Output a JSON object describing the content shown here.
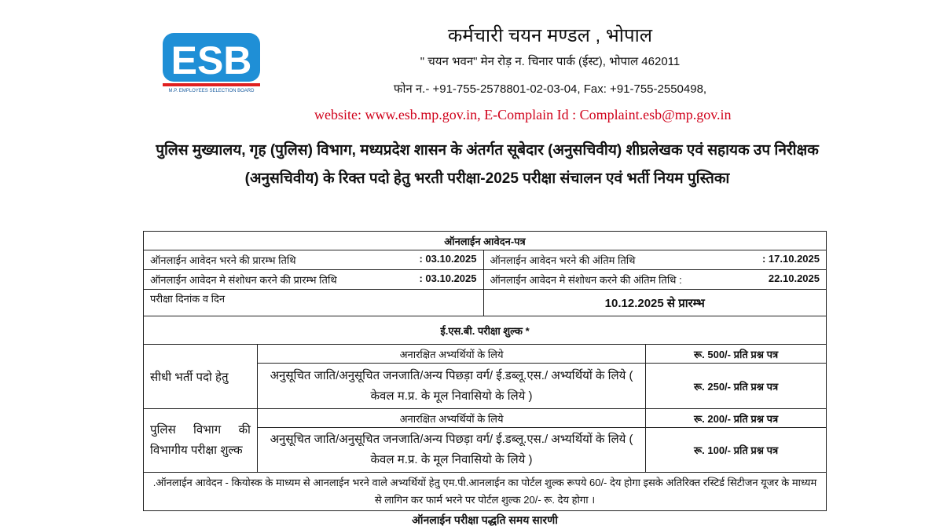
{
  "logo": {
    "text": "ESB",
    "subtext": "M.P. EMPLOYEES SELECTION BOARD",
    "colors": [
      "#1f8fd6",
      "#e02020"
    ]
  },
  "header": {
    "org": "कर्मचारी चयन मण्डल , भोपाल",
    "address": "\" चयन भवन\" मेन रोड़ न. चिनार पार्क (ईस्ट), भोपाल 462011",
    "phone": "फोन न.- +91-755-2578801-02-03-04, Fax: +91-755-2550498,",
    "web": "website: www.esb.mp.gov.in,  E-Complain Id : Complaint.esb@mp.gov.in"
  },
  "title": "पुलिस मुख्यालय, गृह (पुलिस) विभाग, मध्यप्रदेश शासन के अंतर्गत सूबेदार (अनुसचिवीय) शीघ्रलेखक एवं सहायक उप निरीक्षक (अनुसचिवीय) के रिक्त पदो हेतु भरती परीक्षा-2025 परीक्षा संचालन एवं भर्ती नियम पुस्तिका",
  "table": {
    "heading": "ऑनलाईन आवेदन-पत्र",
    "rows": [
      {
        "l_label": "ऑनलाईन आवेदन भरने की प्रारम्भ तिथि",
        "l_value": ": 03.10.2025",
        "r_label": "ऑनलाईन आवेदन भरने की अंतिम तिथि",
        "r_value": ":   17.10.2025"
      },
      {
        "l_label": "ऑनलाईन आवेदन मे संशोधन करने की प्रारम्भ तिथि",
        "l_value": ": 03.10.2025",
        "r_label": "ऑनलाईन आवेदन मे संशोधन करने की अंतिम तिथि :",
        "r_value": "22.10.2025"
      }
    ],
    "exam_label": "परीक्षा दिनांक व दिन",
    "exam_value": "10.12.2025 से प्रारम्भ",
    "fee_heading": "ई.एस.बी. परीक्षा शुल्क *",
    "groups": [
      {
        "label": "सीधी भर्ती पदो हेतु",
        "items": [
          {
            "cat": "अनारक्षित अभ्यर्थियों के लिये",
            "fee": "रू. 500/- प्रति प्रश्न पत्र"
          },
          {
            "cat": "अनुसूचित जाति/अनुसूचित जनजाति/अन्य पिछड़ा वर्ग/ ई.डब्लू.एस./ अभ्यर्थियों के लिये   ( केवल म.प्र. के मूल निवासियो के लिये )",
            "fee": "रू. 250/- प्रति प्रश्न पत्र"
          }
        ]
      },
      {
        "label": "पुलिस विभाग की विभागीय परीक्षा शुल्क",
        "items": [
          {
            "cat": "अनारक्षित अभ्यर्थियों के लिये",
            "fee": "रू. 200/- प्रति प्रश्न पत्र"
          },
          {
            "cat": "अनुसूचित जाति/अनुसूचित जनजाति/अन्य पिछड़ा वर्ग/ ई.डब्लू.एस./ अभ्यर्थियों के लिये   ( केवल म.प्र. के मूल निवासियो के लिये )",
            "fee": "रू. 100/- प्रति प्रश्न पत्र"
          }
        ]
      }
    ],
    "note": ".ऑनलाईन आवेदन - कियोस्क के माध्यम से आनलाईन भरने वाले अभ्यर्थियों हेतु एम.पी.आनलाईन का पोर्टल शुल्क रूपये 60/- देय होगा इसके अतिरिक्त रस्टिर्ड सिटीजन यूजर के माध्यम से लागिन कर फार्म भरने पर पोर्टल शुल्क 20/- रू. देय होगा ।"
  },
  "caption": "ऑनलाईन परीक्षा पद्धति समय सारणी"
}
